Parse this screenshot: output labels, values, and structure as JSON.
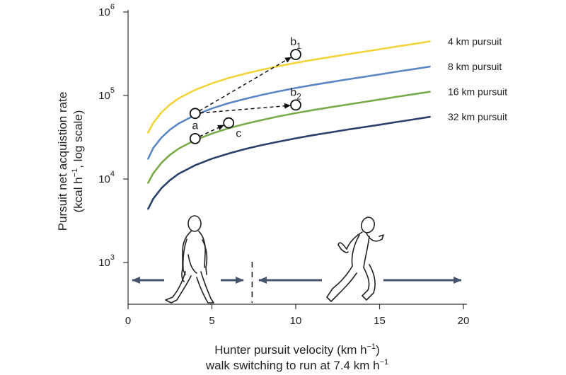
{
  "chart_data": {
    "type": "line",
    "title": "",
    "xlabel": "Hunter pursuit velocity (km h",
    "xlabel_sup": "−1",
    "xlabel_suffix": ")",
    "xlabel_line2": "walk switching to run at 7.4 km h",
    "xlabel_line2_sup": "−1",
    "ylabel_line1": "Pursuit net acquistion rate",
    "ylabel_line2_prefix": "(kcal h",
    "ylabel_line2_sup": "−1",
    "ylabel_line2_suffix": ", log scale)",
    "x_scale": "linear",
    "y_scale": "log",
    "xlim": [
      0,
      20
    ],
    "ylim": [
      300,
      1000000
    ],
    "x_ticks": [
      {
        "value": 0,
        "label": "0"
      },
      {
        "value": 5,
        "label": "5"
      },
      {
        "value": 10,
        "label": "10"
      },
      {
        "value": 15,
        "label": "15"
      },
      {
        "value": 20,
        "label": "20"
      }
    ],
    "y_ticks": [
      {
        "value": 1000,
        "base": "10",
        "exp": "3"
      },
      {
        "value": 10000,
        "base": "10",
        "exp": "4"
      },
      {
        "value": 100000,
        "base": "10",
        "exp": "5"
      },
      {
        "value": 1000000,
        "base": "10",
        "exp": "6"
      }
    ],
    "grid": false,
    "legend": "inline-right",
    "x": [
      1.2,
      1.5,
      2,
      2.5,
      3,
      4,
      5,
      6,
      7,
      8,
      9,
      10,
      11,
      12,
      13,
      14,
      15,
      16,
      17,
      18
    ],
    "series": [
      {
        "name": "4 km pursuit",
        "color": "#f2d43a",
        "values": [
          36000,
          47000,
          63000,
          78000,
          92000,
          117000,
          140000,
          162000,
          183000,
          204000,
          225000,
          246000,
          267000,
          288000,
          310000,
          333000,
          358000,
          385000,
          413000,
          445000
        ]
      },
      {
        "name": "8 km pursuit",
        "color": "#5b86c4",
        "values": [
          17500,
          23500,
          31500,
          39000,
          46000,
          58500,
          70000,
          81000,
          91500,
          102000,
          112500,
          123000,
          133500,
          144000,
          155000,
          166500,
          179000,
          192500,
          206500,
          222000
        ]
      },
      {
        "name": "16 km pursuit",
        "color": "#7aab4a",
        "values": [
          9000,
          11700,
          15700,
          19500,
          23000,
          29300,
          35000,
          40500,
          45800,
          51000,
          56300,
          61500,
          66800,
          72000,
          77500,
          83300,
          89500,
          96300,
          103300,
          111000
        ]
      },
      {
        "name": "32 km pursuit",
        "color": "#28406a",
        "values": [
          4400,
          5800,
          7800,
          9700,
          11500,
          14600,
          17500,
          20200,
          22900,
          25500,
          28100,
          30700,
          33400,
          36000,
          38800,
          41600,
          44700,
          48100,
          51600,
          55500
        ]
      }
    ],
    "points": [
      {
        "name": "a",
        "base": "a",
        "sub": "",
        "x": 4,
        "y": 61000,
        "label_pos": "below"
      },
      {
        "name": "a-16",
        "base": "",
        "sub": "",
        "x": 4,
        "y": 30500,
        "label_pos": "none"
      },
      {
        "name": "b1",
        "base": "b",
        "sub": "1",
        "x": 10,
        "y": 310000,
        "label_pos": "above"
      },
      {
        "name": "b2",
        "base": "b",
        "sub": "2",
        "x": 10,
        "y": 77000,
        "label_pos": "above"
      },
      {
        "name": "c",
        "base": "c",
        "sub": "",
        "x": 6,
        "y": 47000,
        "label_pos": "below-right"
      }
    ],
    "arrows": [
      {
        "from": "a",
        "to": "b1"
      },
      {
        "from": "a",
        "to": "b2"
      },
      {
        "from": "a-16",
        "to": "c"
      }
    ],
    "walk_run_threshold": 7.4,
    "arrow_color": "#46546e"
  }
}
